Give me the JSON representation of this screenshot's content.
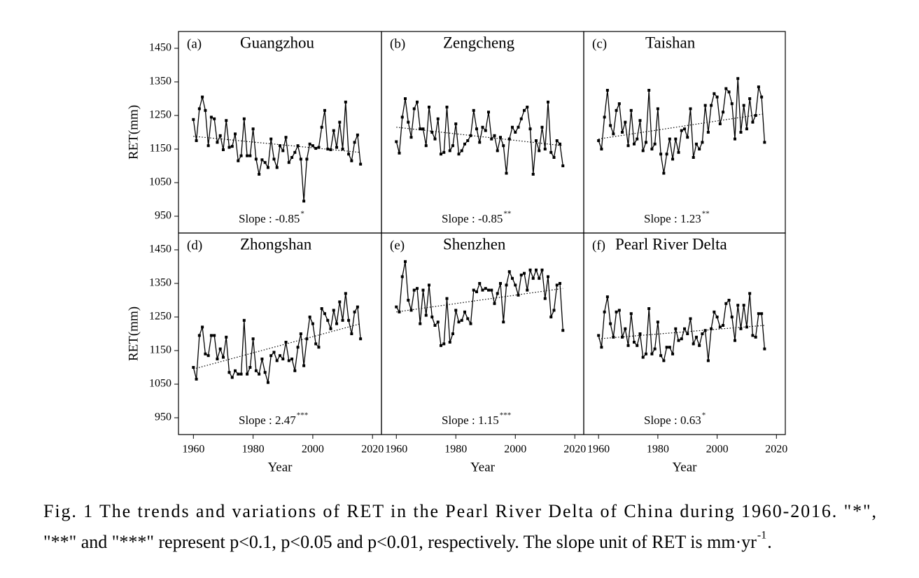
{
  "chart_data": [
    {
      "type": "line",
      "panel_label": "(a)",
      "title": "Guangzhou",
      "ylabel": "RET(mm)",
      "annotation": "Slope : -0.85",
      "annotation_sup": "*",
      "color": "#000000",
      "x": [
        1960,
        1961,
        1962,
        1963,
        1964,
        1965,
        1966,
        1967,
        1968,
        1969,
        1970,
        1971,
        1972,
        1973,
        1974,
        1975,
        1976,
        1977,
        1978,
        1979,
        1980,
        1981,
        1982,
        1983,
        1984,
        1985,
        1986,
        1987,
        1988,
        1989,
        1990,
        1991,
        1992,
        1993,
        1994,
        1995,
        1996,
        1997,
        1998,
        1999,
        2000,
        2001,
        2002,
        2003,
        2004,
        2005,
        2006,
        2007,
        2008,
        2009,
        2010,
        2011,
        2012,
        2013,
        2014,
        2015,
        2016
      ],
      "values": [
        1238,
        1175,
        1270,
        1305,
        1265,
        1160,
        1245,
        1240,
        1170,
        1190,
        1148,
        1235,
        1155,
        1158,
        1195,
        1115,
        1130,
        1240,
        1130,
        1130,
        1210,
        1120,
        1075,
        1118,
        1110,
        1095,
        1180,
        1120,
        1095,
        1160,
        1145,
        1185,
        1110,
        1125,
        1140,
        1160,
        1120,
        995,
        1120,
        1165,
        1160,
        1152,
        1155,
        1215,
        1265,
        1150,
        1148,
        1205,
        1155,
        1230,
        1150,
        1290,
        1135,
        1115,
        1170,
        1192,
        1105
      ],
      "trend": {
        "x": [
          1960,
          2016
        ],
        "values": [
          1188,
          1140
        ]
      },
      "xlim": [
        1955,
        2023
      ],
      "ylim": [
        900,
        1500
      ],
      "yticks": [
        950,
        1050,
        1150,
        1250,
        1350,
        1450
      ]
    },
    {
      "type": "line",
      "panel_label": "(b)",
      "title": "Zengcheng",
      "annotation": "Slope : -0.85",
      "annotation_sup": "**",
      "color": "#000000",
      "x": [
        1960,
        1961,
        1962,
        1963,
        1964,
        1965,
        1966,
        1967,
        1968,
        1969,
        1970,
        1971,
        1972,
        1973,
        1974,
        1975,
        1976,
        1977,
        1978,
        1979,
        1980,
        1981,
        1982,
        1983,
        1984,
        1985,
        1986,
        1987,
        1988,
        1989,
        1990,
        1991,
        1992,
        1993,
        1994,
        1995,
        1996,
        1997,
        1998,
        1999,
        2000,
        2001,
        2002,
        2003,
        2004,
        2005,
        2006,
        2007,
        2008,
        2009,
        2010,
        2011,
        2012,
        2013,
        2014,
        2015,
        2016
      ],
      "values": [
        1172,
        1138,
        1245,
        1300,
        1230,
        1185,
        1270,
        1290,
        1210,
        1210,
        1160,
        1275,
        1200,
        1180,
        1240,
        1135,
        1140,
        1275,
        1145,
        1160,
        1225,
        1135,
        1145,
        1165,
        1175,
        1190,
        1265,
        1210,
        1170,
        1215,
        1205,
        1260,
        1180,
        1190,
        1145,
        1185,
        1160,
        1078,
        1180,
        1215,
        1200,
        1215,
        1240,
        1265,
        1275,
        1210,
        1075,
        1175,
        1145,
        1215,
        1150,
        1290,
        1140,
        1125,
        1175,
        1165,
        1100
      ],
      "trend": {
        "x": [
          1960,
          2016
        ],
        "values": [
          1215,
          1160
        ]
      },
      "xlim": [
        1955,
        2023
      ],
      "ylim": [
        900,
        1500
      ]
    },
    {
      "type": "line",
      "panel_label": "(c)",
      "title": "Taishan",
      "annotation": "Slope : 1.23",
      "annotation_sup": "**",
      "color": "#000000",
      "x": [
        1960,
        1961,
        1962,
        1963,
        1964,
        1965,
        1966,
        1967,
        1968,
        1969,
        1970,
        1971,
        1972,
        1973,
        1974,
        1975,
        1976,
        1977,
        1978,
        1979,
        1980,
        1981,
        1982,
        1983,
        1984,
        1985,
        1986,
        1987,
        1988,
        1989,
        1990,
        1991,
        1992,
        1993,
        1994,
        1995,
        1996,
        1997,
        1998,
        1999,
        2000,
        2001,
        2002,
        2003,
        2004,
        2005,
        2006,
        2007,
        2008,
        2009,
        2010,
        2011,
        2012,
        2013,
        2014,
        2015,
        2016
      ],
      "values": [
        1175,
        1150,
        1245,
        1325,
        1220,
        1195,
        1265,
        1285,
        1200,
        1230,
        1160,
        1265,
        1165,
        1180,
        1235,
        1145,
        1170,
        1325,
        1150,
        1165,
        1270,
        1135,
        1078,
        1135,
        1180,
        1120,
        1180,
        1140,
        1205,
        1210,
        1185,
        1270,
        1125,
        1165,
        1150,
        1170,
        1280,
        1200,
        1280,
        1315,
        1305,
        1225,
        1260,
        1330,
        1320,
        1285,
        1180,
        1360,
        1200,
        1280,
        1210,
        1300,
        1230,
        1250,
        1335,
        1305,
        1170
      ],
      "trend": {
        "x": [
          1960,
          2016
        ],
        "values": [
          1180,
          1255
        ]
      },
      "xlim": [
        1955,
        2023
      ],
      "ylim": [
        900,
        1500
      ]
    },
    {
      "type": "line",
      "panel_label": "(d)",
      "title": "Zhongshan",
      "ylabel": "RET(mm)",
      "xlabel": "Year",
      "annotation": "Slope : 2.47",
      "annotation_sup": "***",
      "color": "#000000",
      "x": [
        1960,
        1961,
        1962,
        1963,
        1964,
        1965,
        1966,
        1967,
        1968,
        1969,
        1970,
        1971,
        1972,
        1973,
        1974,
        1975,
        1976,
        1977,
        1978,
        1979,
        1980,
        1981,
        1982,
        1983,
        1984,
        1985,
        1986,
        1987,
        1988,
        1989,
        1990,
        1991,
        1992,
        1993,
        1994,
        1995,
        1996,
        1997,
        1998,
        1999,
        2000,
        2001,
        2002,
        2003,
        2004,
        2005,
        2006,
        2007,
        2008,
        2009,
        2010,
        2011,
        2012,
        2013,
        2014,
        2015,
        2016
      ],
      "values": [
        1100,
        1065,
        1195,
        1220,
        1140,
        1135,
        1195,
        1195,
        1125,
        1155,
        1130,
        1190,
        1085,
        1070,
        1090,
        1080,
        1080,
        1240,
        1080,
        1100,
        1185,
        1090,
        1080,
        1125,
        1085,
        1055,
        1135,
        1145,
        1120,
        1135,
        1125,
        1175,
        1120,
        1125,
        1090,
        1160,
        1200,
        1105,
        1185,
        1250,
        1230,
        1170,
        1160,
        1275,
        1260,
        1240,
        1215,
        1270,
        1230,
        1295,
        1240,
        1320,
        1240,
        1200,
        1265,
        1280,
        1185
      ],
      "trend": {
        "x": [
          1960,
          2016
        ],
        "values": [
          1095,
          1230
        ]
      },
      "xlim": [
        1955,
        2023
      ],
      "ylim": [
        900,
        1500
      ],
      "xticks": [
        1960,
        1980,
        2000,
        2020
      ],
      "yticks": [
        950,
        1050,
        1150,
        1250,
        1350,
        1450
      ]
    },
    {
      "type": "line",
      "panel_label": "(e)",
      "title": "Shenzhen",
      "xlabel": "Year",
      "annotation": "Slope : 1.15",
      "annotation_sup": "***",
      "color": "#000000",
      "x": [
        1960,
        1961,
        1962,
        1963,
        1964,
        1965,
        1966,
        1967,
        1968,
        1969,
        1970,
        1971,
        1972,
        1973,
        1974,
        1975,
        1976,
        1977,
        1978,
        1979,
        1980,
        1981,
        1982,
        1983,
        1984,
        1985,
        1986,
        1987,
        1988,
        1989,
        1990,
        1991,
        1992,
        1993,
        1994,
        1995,
        1996,
        1997,
        1998,
        1999,
        2000,
        2001,
        2002,
        2003,
        2004,
        2005,
        2006,
        2007,
        2008,
        2009,
        2010,
        2011,
        2012,
        2013,
        2014,
        2015,
        2016
      ],
      "values": [
        1280,
        1265,
        1370,
        1415,
        1300,
        1270,
        1330,
        1335,
        1230,
        1330,
        1255,
        1345,
        1250,
        1225,
        1235,
        1165,
        1170,
        1305,
        1175,
        1200,
        1270,
        1235,
        1240,
        1265,
        1245,
        1230,
        1330,
        1325,
        1350,
        1330,
        1335,
        1330,
        1330,
        1290,
        1320,
        1350,
        1235,
        1345,
        1385,
        1365,
        1345,
        1315,
        1375,
        1380,
        1330,
        1390,
        1365,
        1390,
        1365,
        1390,
        1305,
        1370,
        1250,
        1270,
        1345,
        1350,
        1210
      ],
      "trend": {
        "x": [
          1960,
          2016
        ],
        "values": [
          1265,
          1335
        ]
      },
      "xlim": [
        1955,
        2023
      ],
      "ylim": [
        900,
        1500
      ],
      "xticks": [
        1960,
        1980,
        2000,
        2020
      ]
    },
    {
      "type": "line",
      "panel_label": "(f)",
      "title": "Pearl River Delta",
      "xlabel": "Year",
      "annotation": "Slope : 0.63",
      "annotation_sup": "*",
      "color": "#000000",
      "x": [
        1960,
        1961,
        1962,
        1963,
        1964,
        1965,
        1966,
        1967,
        1968,
        1969,
        1970,
        1971,
        1972,
        1973,
        1974,
        1975,
        1976,
        1977,
        1978,
        1979,
        1980,
        1981,
        1982,
        1983,
        1984,
        1985,
        1986,
        1987,
        1988,
        1989,
        1990,
        1991,
        1992,
        1993,
        1994,
        1995,
        1996,
        1997,
        1998,
        1999,
        2000,
        2001,
        2002,
        2003,
        2004,
        2005,
        2006,
        2007,
        2008,
        2009,
        2010,
        2011,
        2012,
        2013,
        2014,
        2015,
        2016
      ],
      "values": [
        1195,
        1160,
        1265,
        1310,
        1230,
        1190,
        1265,
        1270,
        1190,
        1215,
        1165,
        1260,
        1175,
        1165,
        1200,
        1130,
        1140,
        1275,
        1140,
        1155,
        1235,
        1135,
        1120,
        1160,
        1160,
        1140,
        1215,
        1180,
        1185,
        1215,
        1200,
        1245,
        1170,
        1190,
        1165,
        1200,
        1210,
        1120,
        1215,
        1265,
        1250,
        1220,
        1225,
        1290,
        1300,
        1250,
        1180,
        1285,
        1215,
        1285,
        1220,
        1320,
        1195,
        1190,
        1260,
        1260,
        1155
      ],
      "trend": {
        "x": [
          1960,
          2016
        ],
        "values": [
          1185,
          1225
        ]
      },
      "xlim": [
        1955,
        2023
      ],
      "ylim": [
        900,
        1500
      ],
      "xticks": [
        1960,
        1980,
        2000,
        2020
      ]
    }
  ],
  "caption": {
    "line1": "Fig. 1 The trends and variations of RET in the Pearl River Delta of China during 1960-2016. \"*\",",
    "line2": "\"**\" and \"***\" represent p<0.1, p<0.05 and p<0.01, respectively. The slope unit of RET is mm·yr",
    "sup": "-1",
    "end": "."
  }
}
